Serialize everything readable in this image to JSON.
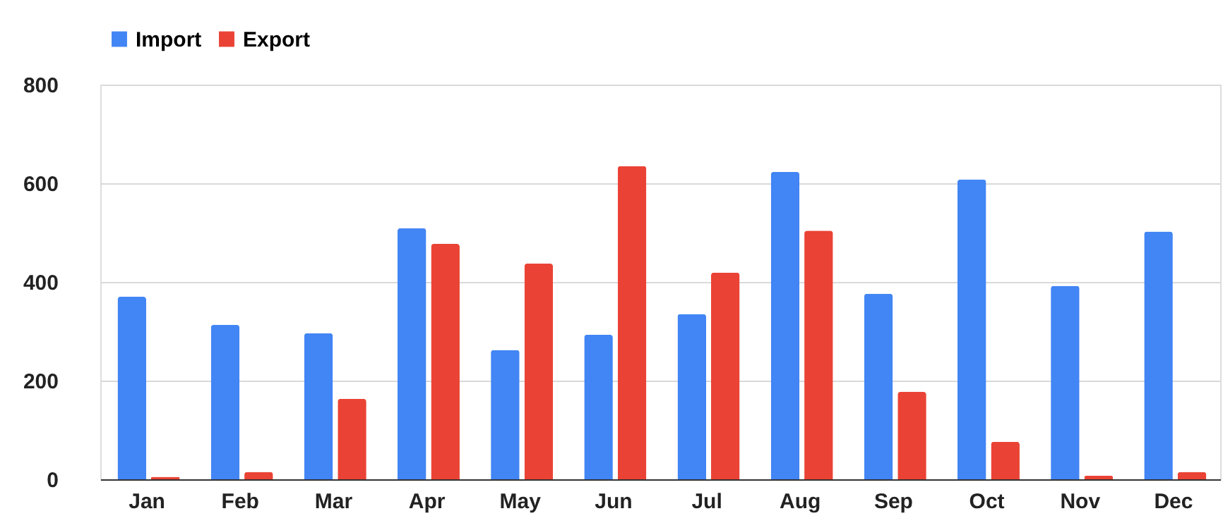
{
  "chart_data": {
    "type": "bar",
    "categories": [
      "Jan",
      "Feb",
      "Mar",
      "Apr",
      "May",
      "Jun",
      "Jul",
      "Aug",
      "Sep",
      "Oct",
      "Nov",
      "Dec"
    ],
    "series": [
      {
        "name": "Import",
        "color": "#4285f4",
        "values": [
          370,
          313,
          296,
          509,
          262,
          293,
          335,
          623,
          376,
          608,
          392,
          502
        ]
      },
      {
        "name": "Export",
        "color": "#ea4335",
        "values": [
          5,
          15,
          163,
          477,
          437,
          635,
          419,
          504,
          177,
          76,
          7,
          15
        ]
      }
    ],
    "ylim": [
      0,
      800
    ],
    "yticks": [
      0,
      200,
      400,
      600,
      800
    ],
    "grid": "y",
    "legend": "top"
  }
}
